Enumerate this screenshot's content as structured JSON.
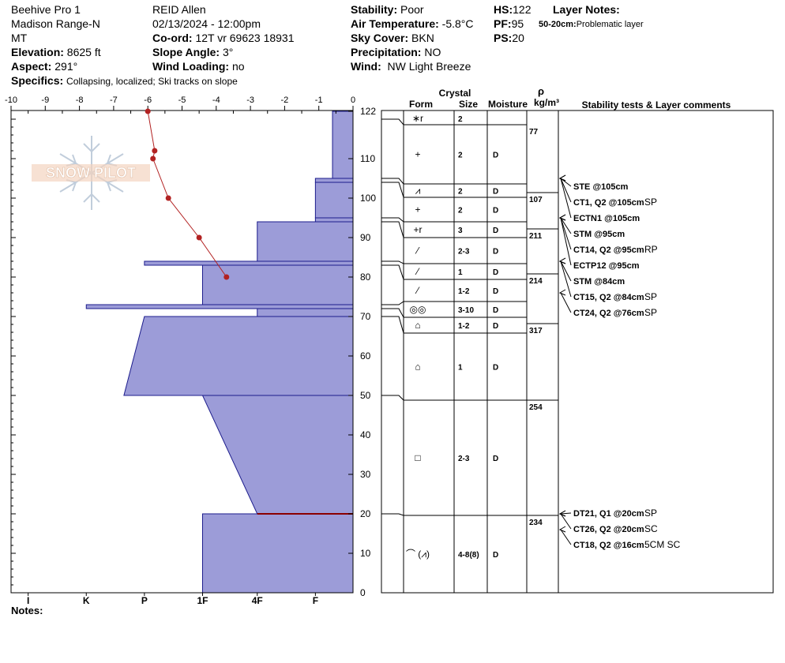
{
  "header": {
    "location": "Beehive Pro 1",
    "range": "Madison Range-N",
    "state": "MT",
    "elevation_label": "Elevation:",
    "elevation": "8625 ft",
    "aspect_label": "Aspect:",
    "aspect": "291°",
    "specifics_label": "Specifics:",
    "specifics": "Collapsing, localized; Ski tracks on slope",
    "observer": "REID Allen",
    "datetime": "02/13/2024 - 12:00pm",
    "coord_label": "Co-ord:",
    "coord": "12T vr 69623 18931",
    "slope_label": "Slope Angle:",
    "slope": "3°",
    "wind_loading_label": "Wind Loading:",
    "wind_loading": "no",
    "stability_label": "Stability:",
    "stability": "Poor",
    "air_temp_label": "Air Temperature:",
    "air_temp": "-5.8°C",
    "sky_label": "Sky Cover:",
    "sky": "BKN",
    "precip_label": "Precipitation:",
    "precip": "NO",
    "wind_label": "Wind:",
    "wind": "NW Light Breeze",
    "hs_label": "HS:",
    "hs": "122",
    "pf_label": "PF:",
    "pf": "95",
    "ps_label": "PS:",
    "ps": "20",
    "layer_notes_label": "Layer Notes:",
    "layer_note_range": "50-20cm:",
    "layer_note": "Problematic layer",
    "notes_label": "Notes:"
  },
  "logo_text": "SNOW PILOT",
  "colors": {
    "hardness_fill": "#9c9cd8",
    "hardness_stroke": "#1c1c8c",
    "temp_line": "#b22222",
    "weak_layer": "#8b0000"
  },
  "chart_data": {
    "type": "area",
    "title": "",
    "temperature_axis": {
      "label": "",
      "range": [
        -10,
        0
      ],
      "ticks": [
        "-10",
        "-9",
        "-8",
        "-7",
        "-6",
        "-5",
        "-4",
        "-3",
        "-2",
        "-1",
        "0"
      ]
    },
    "depth_axis": {
      "label": "",
      "range": [
        0,
        122
      ],
      "ticks": [
        "0",
        "10",
        "20",
        "30",
        "40",
        "50",
        "60",
        "70",
        "80",
        "90",
        "100",
        "110",
        "122"
      ]
    },
    "hardness_axis": {
      "ticks": [
        "I",
        "K",
        "P",
        "1F",
        "4F",
        "F"
      ]
    },
    "temperature_profile": {
      "depth": [
        122,
        112,
        110,
        100,
        90,
        80
      ],
      "temp": [
        -6.0,
        -5.8,
        -5.85,
        -5.4,
        -4.5,
        -3.7
      ]
    },
    "hardness_profile": [
      {
        "top": 122,
        "bottom": 105,
        "hardness": 0.6
      },
      {
        "top": 105,
        "bottom": 104,
        "hardness": 1.1
      },
      {
        "top": 104,
        "bottom": 95,
        "hardness": 1.1
      },
      {
        "top": 95,
        "bottom": 94,
        "hardness": 1.1
      },
      {
        "top": 94,
        "bottom": 84,
        "hardness": 2.8
      },
      {
        "top": 84,
        "bottom": 83,
        "hardness": 6.1
      },
      {
        "top": 83,
        "bottom": 73,
        "hardness": 4.4
      },
      {
        "top": 73,
        "bottom": 72,
        "hardness": 7.8
      },
      {
        "top": 72,
        "bottom": 70,
        "hardness": 2.8
      },
      {
        "top": 70,
        "bottom": 50,
        "hardness_top": 6.1,
        "hardness_bottom": 6.7
      },
      {
        "top": 50,
        "bottom": 20,
        "hardness_top": 4.4,
        "hardness_bottom": 2.8
      },
      {
        "top": 20,
        "bottom": 0,
        "hardness": 4.4
      }
    ],
    "weak_layer_depth": 20,
    "columns": {
      "crystal_title": "Crystal",
      "form": "Form",
      "size": "Size",
      "moisture": "Moisture",
      "rho_symbol": "ρ",
      "rho_unit": "kg/m³",
      "comments": "Stability tests & Layer comments"
    },
    "layers": [
      {
        "top": 122,
        "bottom": 120,
        "form": "∗r",
        "size": "2",
        "moisture": ""
      },
      {
        "top": 120,
        "bottom": 105,
        "form": "+",
        "size": "2",
        "moisture": "D"
      },
      {
        "top": 105,
        "bottom": 104,
        "form": "⩘",
        "size": "2",
        "moisture": "D"
      },
      {
        "top": 104,
        "bottom": 95,
        "form": "+",
        "size": "2",
        "moisture": "D"
      },
      {
        "top": 95,
        "bottom": 94,
        "form": "+r",
        "size": "3",
        "moisture": "D"
      },
      {
        "top": 94,
        "bottom": 84,
        "form": "⁄",
        "size": "2-3",
        "moisture": "D"
      },
      {
        "top": 84,
        "bottom": 83,
        "form": "⁄",
        "size": "1",
        "moisture": "D"
      },
      {
        "top": 83,
        "bottom": 73,
        "form": "⁄",
        "size": "1-2",
        "moisture": "D"
      },
      {
        "top": 73,
        "bottom": 72,
        "form": "◎◎",
        "size": "3-10",
        "moisture": "D"
      },
      {
        "top": 72,
        "bottom": 70,
        "form": "⌂",
        "size": "1-2",
        "moisture": "D"
      },
      {
        "top": 70,
        "bottom": 50,
        "form": "⌂",
        "size": "1",
        "moisture": "D"
      },
      {
        "top": 50,
        "bottom": 20,
        "form": "□",
        "size": "2-3",
        "moisture": "D"
      },
      {
        "top": 20,
        "bottom": 0,
        "form": "⌒ (⩘)",
        "size": "4-8(8)",
        "moisture": "D"
      }
    ],
    "densities": [
      {
        "top": 122,
        "bottom": 104,
        "value": "77"
      },
      {
        "top": 104,
        "bottom": 95,
        "value": "107"
      },
      {
        "top": 95,
        "bottom": 84,
        "value": "211"
      },
      {
        "top": 84,
        "bottom": 70,
        "value": "214"
      },
      {
        "top": 70,
        "bottom": 50,
        "value": "317"
      },
      {
        "top": 50,
        "bottom": 20,
        "value": "254"
      },
      {
        "top": 20,
        "bottom": 0,
        "value": "234"
      }
    ],
    "tests": [
      {
        "depth": 105,
        "text": "STE @105cm",
        "suffix": ""
      },
      {
        "depth": 105,
        "text": "CT1, Q2 @105cm",
        "suffix": "SP"
      },
      {
        "depth": 105,
        "text": "ECTN1 @105cm",
        "suffix": ""
      },
      {
        "depth": 95,
        "text": "STM @95cm",
        "suffix": ""
      },
      {
        "depth": 95,
        "text": "CT14, Q2 @95cm",
        "suffix": "RP"
      },
      {
        "depth": 95,
        "text": "ECTP12 @95cm",
        "suffix": ""
      },
      {
        "depth": 84,
        "text": "STM @84cm",
        "suffix": ""
      },
      {
        "depth": 84,
        "text": "CT15, Q2 @84cm",
        "suffix": "SP"
      },
      {
        "depth": 76,
        "text": "CT24, Q2 @76cm",
        "suffix": "SP"
      },
      {
        "depth": 20,
        "text": "DT21, Q1 @20cm",
        "suffix": "SP"
      },
      {
        "depth": 20,
        "text": "CT26, Q2 @20cm",
        "suffix": "SC"
      },
      {
        "depth": 16,
        "text": "CT18, Q2 @16cm",
        "suffix": "5CM SC"
      }
    ]
  }
}
